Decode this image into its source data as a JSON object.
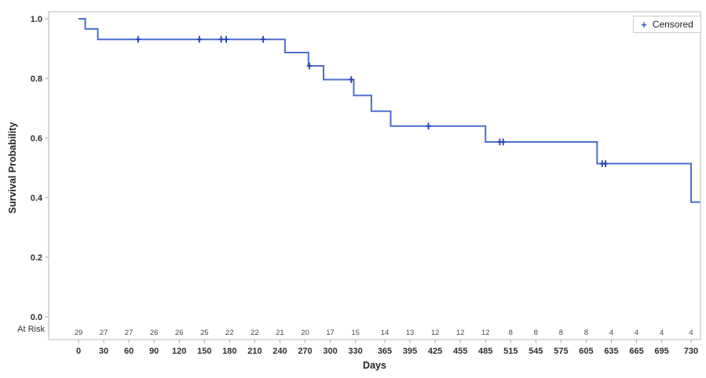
{
  "chart_data": {
    "type": "line",
    "subtype": "kaplan-meier-step",
    "title": "",
    "xlabel": "Days",
    "ylabel": "Survival Probability",
    "xlim": [
      0,
      730
    ],
    "ylim": [
      0.0,
      1.0
    ],
    "grid": false,
    "legend": {
      "marker": "+",
      "label": "Censored",
      "position": "top-right"
    },
    "x_ticks": [
      0,
      30,
      60,
      90,
      120,
      150,
      180,
      210,
      240,
      270,
      300,
      330,
      365,
      395,
      425,
      455,
      485,
      515,
      545,
      575,
      605,
      635,
      665,
      695,
      730
    ],
    "y_ticks": [
      0.0,
      0.2,
      0.4,
      0.6,
      0.8,
      1.0
    ],
    "steps": {
      "times": [
        0,
        8,
        23,
        246,
        274,
        292,
        328,
        349,
        372,
        485,
        618,
        730
      ],
      "survival": [
        1.0,
        0.966,
        0.931,
        0.887,
        0.842,
        0.796,
        0.743,
        0.69,
        0.64,
        0.587,
        0.514,
        0.385
      ]
    },
    "curve_extends_to_frame_edge": true,
    "censored": {
      "times": [
        71,
        144,
        170,
        176,
        220,
        275,
        325,
        417,
        502,
        506,
        624,
        628
      ],
      "survival": [
        0.931,
        0.931,
        0.931,
        0.931,
        0.931,
        0.842,
        0.796,
        0.64,
        0.587,
        0.587,
        0.514,
        0.514
      ]
    },
    "at_risk": {
      "label": "At Risk",
      "times": [
        0,
        30,
        60,
        90,
        120,
        150,
        180,
        210,
        240,
        270,
        300,
        330,
        365,
        395,
        425,
        455,
        485,
        515,
        545,
        575,
        605,
        635,
        665,
        695,
        730
      ],
      "counts": [
        29,
        27,
        27,
        26,
        26,
        25,
        22,
        22,
        21,
        20,
        17,
        15,
        14,
        13,
        12,
        12,
        12,
        8,
        8,
        8,
        8,
        4,
        4,
        4,
        4
      ]
    },
    "colors": {
      "line": "#4a6dd0",
      "censor": "#2646b0",
      "frame": "#c8c8c8",
      "tick": "#a8a8a8",
      "tick_label": "#2e2e2e",
      "at_risk_text": "#4a4a4a",
      "legend_marker": "#3558c0",
      "background": "#ffffff"
    }
  }
}
